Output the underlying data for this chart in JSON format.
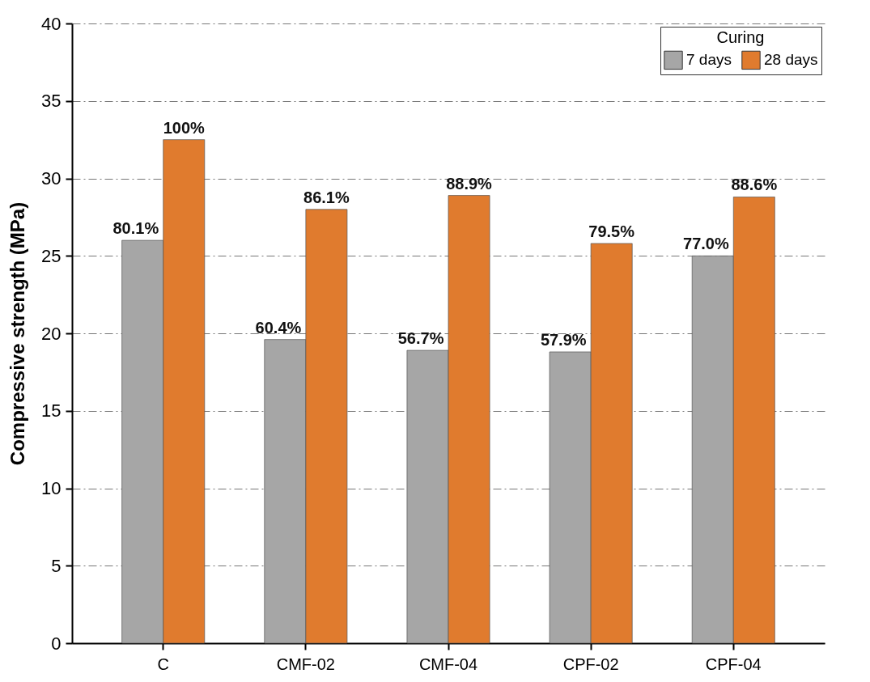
{
  "chart_data": {
    "type": "bar",
    "ylabel": "Compressive strength (MPa)",
    "legend_title": "Curing",
    "categories": [
      "C",
      "CMF-02",
      "CMF-04",
      "CPF-02",
      "CPF-04"
    ],
    "series": [
      {
        "name": "7 days",
        "color": "#a6a6a6",
        "values": [
          26.0,
          19.6,
          18.9,
          18.8,
          25.0
        ]
      },
      {
        "name": "28 days",
        "color": "#e07b2e",
        "values": [
          32.5,
          28.0,
          28.9,
          25.8,
          28.8
        ]
      }
    ],
    "annotations": [
      {
        "text": "80.1%",
        "x": "C",
        "y": 26.0
      },
      {
        "text": "60.4%",
        "x": "CMF-02",
        "y": 19.6
      },
      {
        "text": "56.7%",
        "x": "CMF-04",
        "y": 18.9
      },
      {
        "text": "57.9%",
        "x": "CPF-02",
        "y": 18.8
      },
      {
        "text": "77.0%",
        "x": "CPF-04",
        "y": 25.0
      },
      {
        "text": "100%",
        "x": "C",
        "y": 32.5
      },
      {
        "text": "86.1%",
        "x": "CMF-02",
        "y": 28.0
      },
      {
        "text": "88.9%",
        "x": "CMF-04",
        "y": 28.9
      },
      {
        "text": "79.5%",
        "x": "CPF-02",
        "y": 25.8
      },
      {
        "text": "88.6%",
        "x": "CPF-04",
        "y": 28.8
      }
    ],
    "ylim": [
      0,
      40
    ],
    "yticks": [
      0,
      5,
      10,
      15,
      20,
      25,
      30,
      35,
      40
    ],
    "grid": "y",
    "legend": "top right"
  }
}
